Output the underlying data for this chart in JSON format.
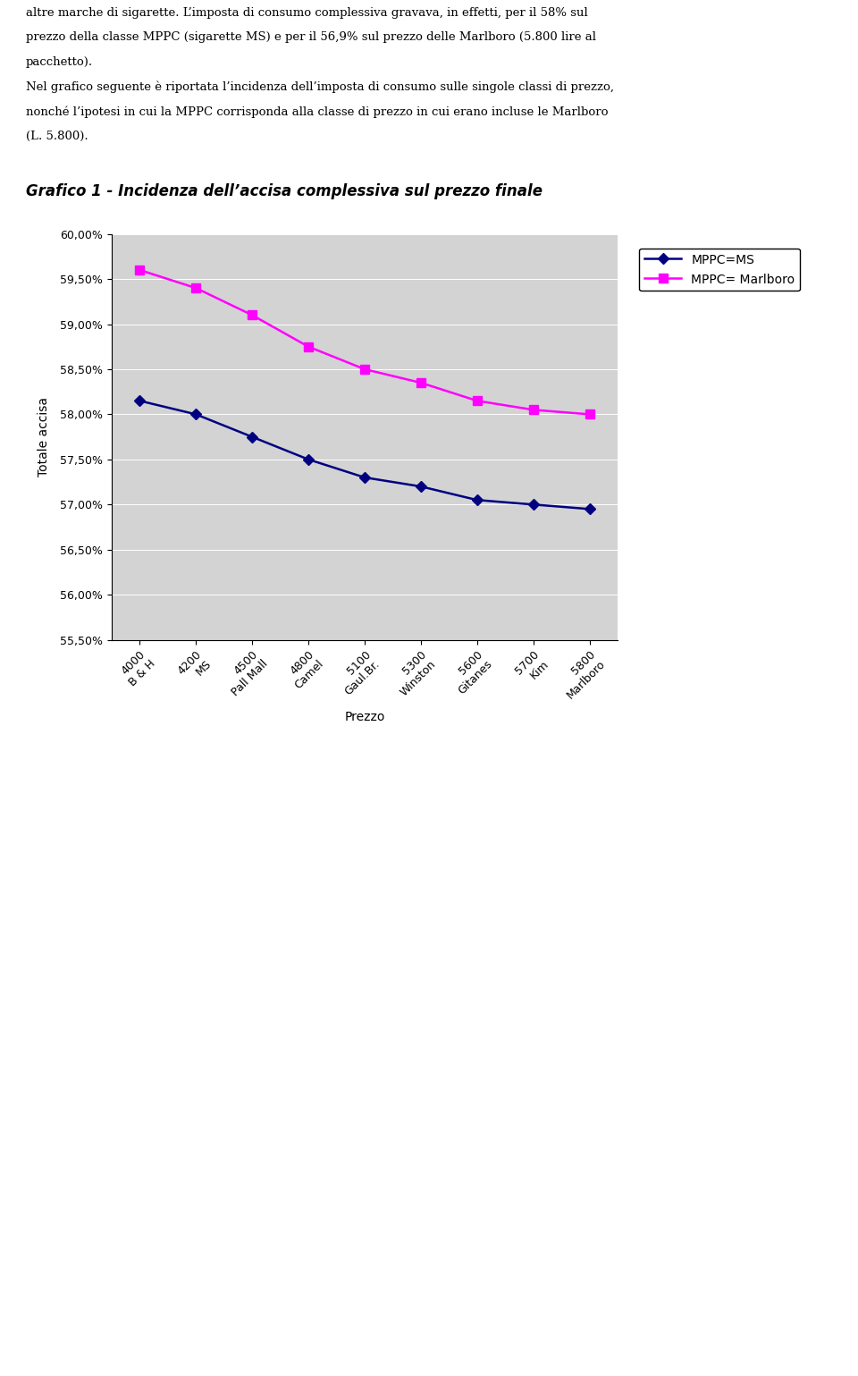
{
  "title": "Grafico 1 - Incidenza dell’accisa complessiva sul prezzo finale",
  "xlabel": "Prezzo",
  "ylabel": "Totale accisa",
  "x_labels": [
    "4000\nB & H",
    "4200\nMS",
    "4500\nPall Mall",
    "4800\nCamel",
    "5100\nGaul.Br.",
    "5300\nWinston",
    "5600\nGitanes",
    "5700\nKim",
    "5800\nMarlboro"
  ],
  "mppc_ms": [
    0.5815,
    0.58,
    0.5775,
    0.575,
    0.573,
    0.572,
    0.5705,
    0.57,
    0.5695
  ],
  "mppc_marlboro": [
    0.596,
    0.594,
    0.591,
    0.5875,
    0.585,
    0.5835,
    0.5815,
    0.5805,
    0.58
  ],
  "ylim_min": 0.555,
  "ylim_max": 0.6,
  "yticks": [
    0.555,
    0.56,
    0.565,
    0.57,
    0.575,
    0.58,
    0.585,
    0.59,
    0.595,
    0.6
  ],
  "ytick_labels": [
    "55,50%",
    "56,00%",
    "56,50%",
    "57,00%",
    "57,50%",
    "58,00%",
    "58,50%",
    "59,00%",
    "59,50%",
    "60,00%"
  ],
  "color_ms": "#000080",
  "color_marlboro": "#FF00FF",
  "legend_ms": "MPPC=MS",
  "legend_marlboro": "MPPC= Marlboro",
  "bg_color": "#D3D3D3",
  "fig_bg_color": "#FFFFFF",
  "title_fontsize": 12,
  "axis_label_fontsize": 10,
  "tick_fontsize": 9,
  "legend_fontsize": 10,
  "text_blocks": [
    "altre marche di sigarette. L’imposta di consumo complessiva gravava, in effetti, per il 58% sul",
    "prezzo della classe MPPC (sigarette MS) e per il 56,9% sul prezzo delle Marlboro (5.800 lire al",
    "pacchetto).",
    "Nel grafico seguente è riportata l’incidenza dell’imposta di consumo sulle singole classi di prezzo,",
    "nonché l’ipotesi in cui la MPPC corrisponda alla classe di prezzo in cui erano incluse le Marlboro",
    "(L. 5.800)."
  ]
}
